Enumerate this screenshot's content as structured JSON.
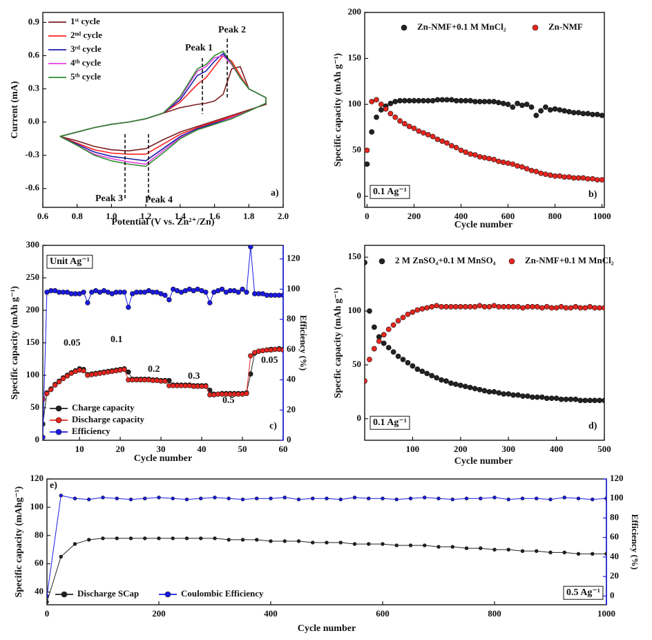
{
  "chart_data": [
    {
      "type": "line",
      "xlabel": "Potential (V vs. Zn²⁺/Zn)",
      "ylabel": "Current (mA)",
      "xlim": [
        0.6,
        2.0
      ],
      "ylim": [
        -0.77,
        0.99
      ],
      "xticks": [
        0.6,
        0.8,
        {
          "value": 1,
          "label": "1.0"
        },
        1.2,
        1.4,
        1.6,
        1.8,
        {
          "value": 2,
          "label": "2.0"
        }
      ],
      "yticks": [
        -0.6,
        -0.3,
        {
          "value": 0,
          "label": "0.0"
        },
        0.3,
        0.6,
        0.9
      ],
      "x": [
        0.7,
        0.8,
        0.9,
        1.0,
        1.1,
        1.2,
        1.3,
        1.4,
        1.5,
        1.6,
        1.7,
        1.8,
        1.9,
        1.9,
        1.8,
        1.75,
        1.7,
        1.65,
        1.6,
        1.55,
        1.5,
        1.4,
        1.3,
        1.2,
        1.1,
        1.0,
        0.9,
        0.8,
        0.7
      ],
      "series": [
        {
          "name": "1ˢᵗ cycle",
          "color": "#7b1d1d",
          "values": [
            -0.13,
            -0.17,
            -0.22,
            -0.25,
            -0.26,
            -0.24,
            -0.16,
            -0.09,
            -0.04,
            0.01,
            0.06,
            0.11,
            0.16,
            0.22,
            0.3,
            0.5,
            0.48,
            0.25,
            0.19,
            0.17,
            0.16,
            0.13,
            0.08,
            0.03,
            0.0,
            -0.02,
            -0.05,
            -0.09,
            -0.13
          ]
        },
        {
          "name": "2ⁿᵈ cycle",
          "color": "#ff1f1f",
          "values": [
            -0.13,
            -0.19,
            -0.25,
            -0.28,
            -0.29,
            -0.29,
            -0.2,
            -0.11,
            -0.05,
            0.0,
            0.05,
            0.1,
            0.17,
            0.22,
            0.3,
            0.42,
            0.55,
            0.6,
            0.5,
            0.4,
            0.34,
            0.18,
            0.08,
            0.03,
            0.0,
            -0.02,
            -0.05,
            -0.09,
            -0.13
          ]
        },
        {
          "name": "3ʳᵈ cycle",
          "color": "#1a1aa8",
          "values": [
            -0.13,
            -0.2,
            -0.27,
            -0.31,
            -0.33,
            -0.35,
            -0.24,
            -0.13,
            -0.06,
            -0.01,
            0.04,
            0.1,
            0.17,
            0.22,
            0.3,
            0.4,
            0.52,
            0.62,
            0.55,
            0.46,
            0.42,
            0.2,
            0.08,
            0.03,
            0.0,
            -0.02,
            -0.05,
            -0.09,
            -0.13
          ]
        },
        {
          "name": "4ᵗʰ cycle",
          "color": "#e040e0",
          "values": [
            -0.13,
            -0.21,
            -0.29,
            -0.33,
            -0.36,
            -0.38,
            -0.26,
            -0.14,
            -0.07,
            -0.02,
            0.04,
            0.1,
            0.17,
            0.22,
            0.3,
            0.4,
            0.52,
            0.6,
            0.58,
            0.5,
            0.46,
            0.22,
            0.08,
            0.03,
            0.0,
            -0.02,
            -0.05,
            -0.09,
            -0.13
          ]
        },
        {
          "name": "5ᵗʰ cycle",
          "color": "#2e8b2e",
          "values": [
            -0.13,
            -0.21,
            -0.3,
            -0.35,
            -0.38,
            -0.4,
            -0.28,
            -0.15,
            -0.07,
            -0.02,
            0.03,
            0.1,
            0.17,
            0.22,
            0.3,
            0.4,
            0.53,
            0.64,
            0.6,
            0.52,
            0.48,
            0.23,
            0.08,
            0.03,
            0.0,
            -0.02,
            -0.05,
            -0.09,
            -0.13
          ]
        }
      ],
      "annotations": [
        "Peak 1",
        "Peak 2",
        "Peak 3",
        "Peak 4",
        "a)"
      ]
    },
    {
      "type": "scatter",
      "xlabel": "Cycle number",
      "ylabel": "Specific capacity (mAh g⁻¹)",
      "xlim": [
        -10,
        1010
      ],
      "ylim": [
        -12,
        200
      ],
      "xticks": [
        0,
        200,
        400,
        600,
        800,
        1000
      ],
      "yticks": [
        0,
        50,
        100,
        150,
        200
      ],
      "x": [
        0,
        20,
        40,
        60,
        80,
        100,
        120,
        140,
        160,
        180,
        200,
        220,
        240,
        260,
        280,
        300,
        320,
        340,
        360,
        380,
        400,
        420,
        440,
        460,
        480,
        500,
        520,
        540,
        560,
        580,
        600,
        620,
        640,
        660,
        680,
        700,
        720,
        740,
        760,
        780,
        800,
        820,
        840,
        860,
        880,
        900,
        920,
        940,
        960,
        980,
        1000
      ],
      "series": [
        {
          "name": "Zn-NMF+0.1 M MnCl₂",
          "color": "#222222",
          "values": [
            35,
            70,
            86,
            94,
            98,
            101,
            103,
            104,
            104,
            104,
            104,
            104,
            104,
            104,
            104,
            105,
            105,
            105,
            105,
            104,
            104,
            104,
            104,
            103,
            103,
            103,
            103,
            103,
            102,
            101,
            100,
            97,
            101,
            99,
            100,
            97,
            88,
            93,
            97,
            94,
            95,
            94,
            93,
            92,
            91,
            91,
            90,
            90,
            89,
            89,
            88
          ]
        },
        {
          "name": "Zn-NMF",
          "color": "#e8261f",
          "values": [
            50,
            103,
            105,
            100,
            95,
            90,
            86,
            82,
            79,
            76,
            74,
            71,
            69,
            67,
            65,
            62,
            60,
            58,
            55,
            53,
            50,
            48,
            46,
            45,
            43,
            42,
            41,
            40,
            38,
            37,
            36,
            35,
            33,
            32,
            30,
            28,
            27,
            25,
            24,
            23,
            22,
            22,
            21,
            21,
            20,
            20,
            20,
            19,
            19,
            18,
            18
          ]
        }
      ],
      "annotations": [
        "0.1 Ag⁻¹",
        "b)"
      ]
    },
    {
      "type": "line",
      "markers": true,
      "xlabel": "Cycle number",
      "ylabel": "Specific capacity (mAh g⁻¹)",
      "y2label": "Efficiency (%)",
      "xlim": [
        1,
        60
      ],
      "ylim": [
        0,
        300
      ],
      "y2lim": [
        0,
        129
      ],
      "xticks": [
        10,
        20,
        30,
        40,
        50,
        60
      ],
      "yticks": [
        0,
        50,
        100,
        150,
        200,
        250,
        300
      ],
      "y2ticks": [
        0,
        20,
        40,
        60,
        80,
        100,
        120
      ],
      "x": [
        1,
        2,
        3,
        4,
        5,
        6,
        7,
        8,
        9,
        10,
        11,
        12,
        13,
        14,
        15,
        16,
        17,
        18,
        19,
        20,
        21,
        22,
        23,
        24,
        25,
        26,
        27,
        28,
        29,
        30,
        31,
        32,
        33,
        34,
        35,
        36,
        37,
        38,
        39,
        40,
        41,
        42,
        43,
        44,
        45,
        46,
        47,
        48,
        49,
        50,
        51,
        52,
        53,
        54,
        55,
        56,
        57,
        58,
        59,
        60
      ],
      "series": [
        {
          "name": "Charge capacity",
          "color": "#222222",
          "values": [
            25,
            73,
            79,
            86,
            91,
            96,
            100,
            104,
            107,
            110,
            109,
            101,
            102,
            103,
            104,
            105,
            106,
            107,
            108,
            109,
            110,
            105,
            94,
            94,
            94,
            94,
            94,
            93,
            93,
            92,
            92,
            92,
            85,
            85,
            85,
            85,
            85,
            84,
            84,
            84,
            84,
            77,
            71,
            71,
            72,
            72,
            72,
            72,
            72,
            72,
            73,
            102,
            134,
            137,
            138,
            139,
            140,
            140,
            141,
            140
          ]
        },
        {
          "name": "Discharge capacity",
          "color": "#e8261f",
          "values": [
            63,
            72,
            78,
            85,
            90,
            95,
            99,
            103,
            106,
            108,
            107,
            100,
            101,
            102,
            103,
            104,
            105,
            106,
            107,
            108,
            109,
            93,
            93,
            93,
            93,
            93,
            93,
            92,
            92,
            91,
            91,
            84,
            84,
            84,
            84,
            84,
            84,
            83,
            83,
            83,
            83,
            70,
            70,
            71,
            71,
            71,
            71,
            71,
            71,
            71,
            72,
            130,
            135,
            137,
            138,
            139,
            139,
            140,
            140,
            139
          ]
        },
        {
          "name": "Efficiency",
          "color": "#1a1ae6",
          "axis": "y2",
          "values": [
            2,
            98,
            99,
            99,
            98,
            98,
            98,
            97,
            97,
            97,
            98,
            91,
            98,
            99,
            98,
            99,
            98,
            97,
            98,
            98,
            98,
            88,
            97,
            98,
            98,
            98,
            99,
            98,
            98,
            97,
            96,
            93,
            100,
            99,
            98,
            99,
            100,
            99,
            100,
            99,
            98,
            91,
            98,
            99,
            100,
            98,
            99,
            99,
            98,
            100,
            98,
            128,
            97,
            97,
            97,
            96,
            96,
            96,
            96,
            96
          ]
        }
      ],
      "annotations": [
        "Unit Ag⁻¹",
        "0.05",
        "0.1",
        "0.2",
        "0.3",
        "0.5",
        "0.05",
        "c)"
      ]
    },
    {
      "type": "scatter",
      "xlabel": "Cycle number",
      "ylabel": "Specfic capacity (mAh g⁻¹)",
      "xlim": [
        0,
        500
      ],
      "ylim": [
        -20,
        161
      ],
      "xticks": [
        100,
        200,
        300,
        400,
        500
      ],
      "yticks": [
        0,
        50,
        100,
        150
      ],
      "x": [
        0,
        10,
        20,
        30,
        40,
        50,
        60,
        70,
        80,
        90,
        100,
        110,
        120,
        130,
        140,
        150,
        160,
        170,
        180,
        190,
        200,
        210,
        220,
        230,
        240,
        250,
        260,
        270,
        280,
        290,
        300,
        310,
        320,
        330,
        340,
        350,
        360,
        370,
        380,
        390,
        400,
        410,
        420,
        430,
        440,
        450,
        460,
        470,
        480,
        490,
        500
      ],
      "series": [
        {
          "name": "2 M ZnSO₄+0.1 M MnSO₄",
          "color": "#222222",
          "values": [
            145,
            100,
            85,
            76,
            70,
            66,
            62,
            58,
            55,
            52,
            49,
            46,
            44,
            42,
            40,
            38,
            36,
            35,
            33,
            32,
            31,
            30,
            29,
            28,
            27,
            26,
            25,
            25,
            24,
            23,
            23,
            22,
            22,
            21,
            21,
            20,
            20,
            20,
            19,
            19,
            19,
            18,
            18,
            18,
            18,
            17,
            17,
            17,
            17,
            17,
            17
          ]
        },
        {
          "name": "Zn-NMF+0.1 M MnCl₂",
          "color": "#e8261f",
          "values": [
            35,
            55,
            65,
            72,
            78,
            83,
            87,
            91,
            94,
            97,
            99,
            101,
            102,
            103,
            104,
            105,
            104,
            104,
            104,
            104,
            104,
            104,
            104,
            104,
            105,
            104,
            104,
            105,
            104,
            104,
            104,
            104,
            104,
            103,
            104,
            104,
            104,
            103,
            104,
            103,
            103,
            104,
            103,
            103,
            104,
            103,
            103,
            104,
            103,
            103,
            103
          ]
        }
      ],
      "annotations": [
        "0.1 Ag⁻¹",
        "d)"
      ]
    },
    {
      "type": "line",
      "markers": true,
      "xlabel": "Cycle number",
      "ylabel": "Specific capacity (mAhg⁻¹)",
      "y2label": "Efficiency (%)",
      "xlim": [
        0,
        1000
      ],
      "ylim": [
        31,
        120
      ],
      "y2lim": [
        -9,
        120
      ],
      "xticks": [
        0,
        200,
        400,
        600,
        800,
        1000
      ],
      "yticks": [
        40,
        60,
        80,
        100,
        120
      ],
      "y2ticks": [
        0,
        20,
        40,
        60,
        80,
        100,
        120
      ],
      "x": [
        0,
        25,
        50,
        75,
        100,
        125,
        150,
        175,
        200,
        225,
        250,
        275,
        300,
        325,
        350,
        375,
        400,
        425,
        450,
        475,
        500,
        525,
        550,
        575,
        600,
        625,
        650,
        675,
        700,
        725,
        750,
        775,
        800,
        825,
        850,
        875,
        900,
        925,
        950,
        975,
        1000
      ],
      "series": [
        {
          "name": "Discharge SCap",
          "color": "#222222",
          "values": [
            33,
            65,
            74,
            77,
            78,
            78,
            78,
            78,
            78,
            78,
            78,
            78,
            78,
            77,
            77,
            77,
            76,
            76,
            76,
            75,
            75,
            75,
            74,
            74,
            74,
            73,
            73,
            73,
            72,
            72,
            71,
            71,
            70,
            70,
            69,
            69,
            68,
            68,
            67,
            67,
            67
          ]
        },
        {
          "name": "Coulombic Efficiency",
          "color": "#1a1ae6",
          "axis": "y2",
          "values": [
            0,
            103,
            100,
            99,
            101,
            100,
            99,
            100,
            101,
            100,
            99,
            100,
            101,
            100,
            99,
            100,
            100,
            101,
            99,
            100,
            100,
            99,
            101,
            100,
            100,
            99,
            100,
            101,
            100,
            99,
            100,
            100,
            101,
            99,
            100,
            100,
            99,
            101,
            100,
            99,
            100
          ]
        }
      ],
      "annotations": [
        "e)",
        "0.5 Ag⁻¹"
      ]
    }
  ]
}
